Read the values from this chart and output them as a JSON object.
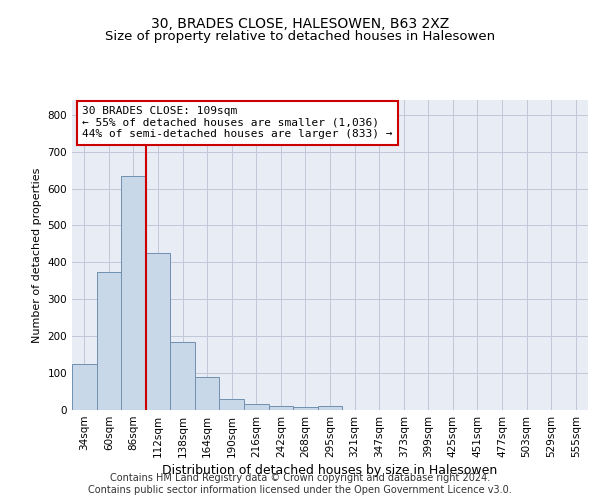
{
  "title_line1": "30, BRADES CLOSE, HALESOWEN, B63 2XZ",
  "title_line2": "Size of property relative to detached houses in Halesowen",
  "xlabel": "Distribution of detached houses by size in Halesowen",
  "ylabel": "Number of detached properties",
  "footer_line1": "Contains HM Land Registry data © Crown copyright and database right 2024.",
  "footer_line2": "Contains public sector information licensed under the Open Government Licence v3.0.",
  "bar_categories": [
    "34sqm",
    "60sqm",
    "86sqm",
    "112sqm",
    "138sqm",
    "164sqm",
    "190sqm",
    "216sqm",
    "242sqm",
    "268sqm",
    "295sqm",
    "321sqm",
    "347sqm",
    "373sqm",
    "399sqm",
    "425sqm",
    "451sqm",
    "477sqm",
    "503sqm",
    "529sqm",
    "555sqm"
  ],
  "bar_values": [
    125,
    375,
    633,
    425,
    183,
    90,
    30,
    15,
    10,
    7,
    10,
    0,
    0,
    0,
    0,
    0,
    0,
    0,
    0,
    0,
    0
  ],
  "bar_color": "#c8d8e8",
  "bar_edge_color": "#7090b0",
  "subject_sqm": 109,
  "annotation_text": "30 BRADES CLOSE: 109sqm\n← 55% of detached houses are smaller (1,036)\n44% of semi-detached houses are larger (833) →",
  "annotation_box_color": "white",
  "annotation_box_edge_color": "#cc0000",
  "red_line_color": "#cc0000",
  "ylim": [
    0,
    840
  ],
  "yticks": [
    0,
    100,
    200,
    300,
    400,
    500,
    600,
    700,
    800
  ],
  "grid_color": "#c0c8d8",
  "background_color": "#e8ecf4",
  "title_fontsize": 10,
  "subtitle_fontsize": 9.5,
  "ylabel_fontsize": 8,
  "xlabel_fontsize": 9,
  "tick_fontsize": 7.5,
  "annotation_fontsize": 8,
  "footer_fontsize": 7
}
